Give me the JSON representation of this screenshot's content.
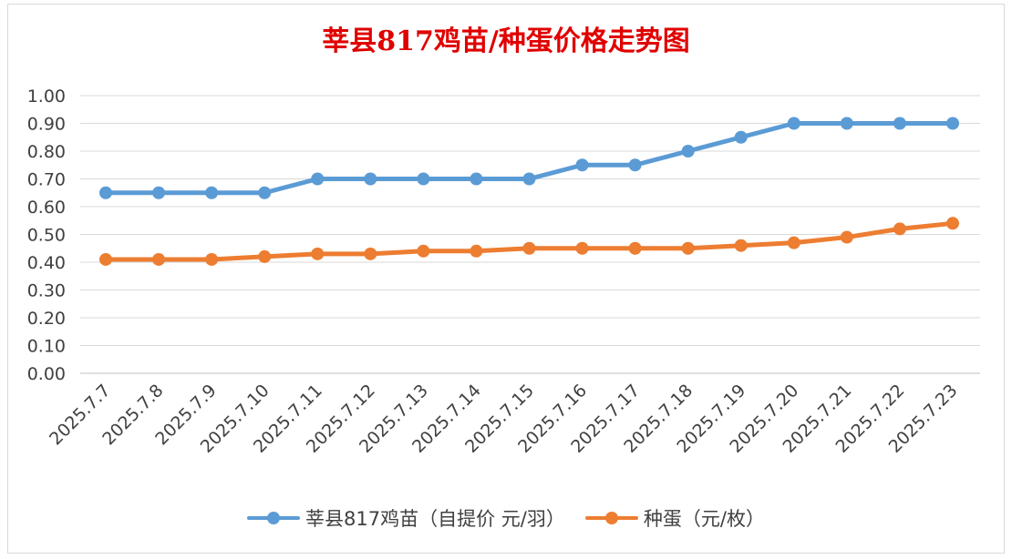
{
  "chart_data": {
    "type": "line",
    "title": "莘县817鸡苗/种蛋价格走势图",
    "categories": [
      "2025.7.7",
      "2025.7.8",
      "2025.7.9",
      "2025.7.10",
      "2025.7.11",
      "2025.7.12",
      "2025.7.13",
      "2025.7.14",
      "2025.7.15",
      "2025.7.16",
      "2025.7.17",
      "2025.7.18",
      "2025.7.19",
      "2025.7.20",
      "2025.7.21",
      "2025.7.22",
      "2025.7.23"
    ],
    "series": [
      {
        "name": "莘县817鸡苗（自提价 元/羽）",
        "color": "#5b9bd5",
        "values": [
          0.65,
          0.65,
          0.65,
          0.65,
          0.7,
          0.7,
          0.7,
          0.7,
          0.7,
          0.75,
          0.75,
          0.8,
          0.85,
          0.9,
          0.9,
          0.9,
          0.9
        ]
      },
      {
        "name": "种蛋（元/枚）",
        "color": "#ed7d31",
        "values": [
          0.41,
          0.41,
          0.41,
          0.42,
          0.43,
          0.43,
          0.44,
          0.44,
          0.45,
          0.45,
          0.45,
          0.45,
          0.46,
          0.47,
          0.49,
          0.52,
          0.54
        ]
      }
    ],
    "ylim": [
      0,
      1.0
    ],
    "yticks": [
      "0.00",
      "0.10",
      "0.20",
      "0.30",
      "0.40",
      "0.50",
      "0.60",
      "0.70",
      "0.80",
      "0.90",
      "1.00"
    ],
    "xlabel": "",
    "ylabel": "",
    "grid": true,
    "legend": "bottom"
  }
}
